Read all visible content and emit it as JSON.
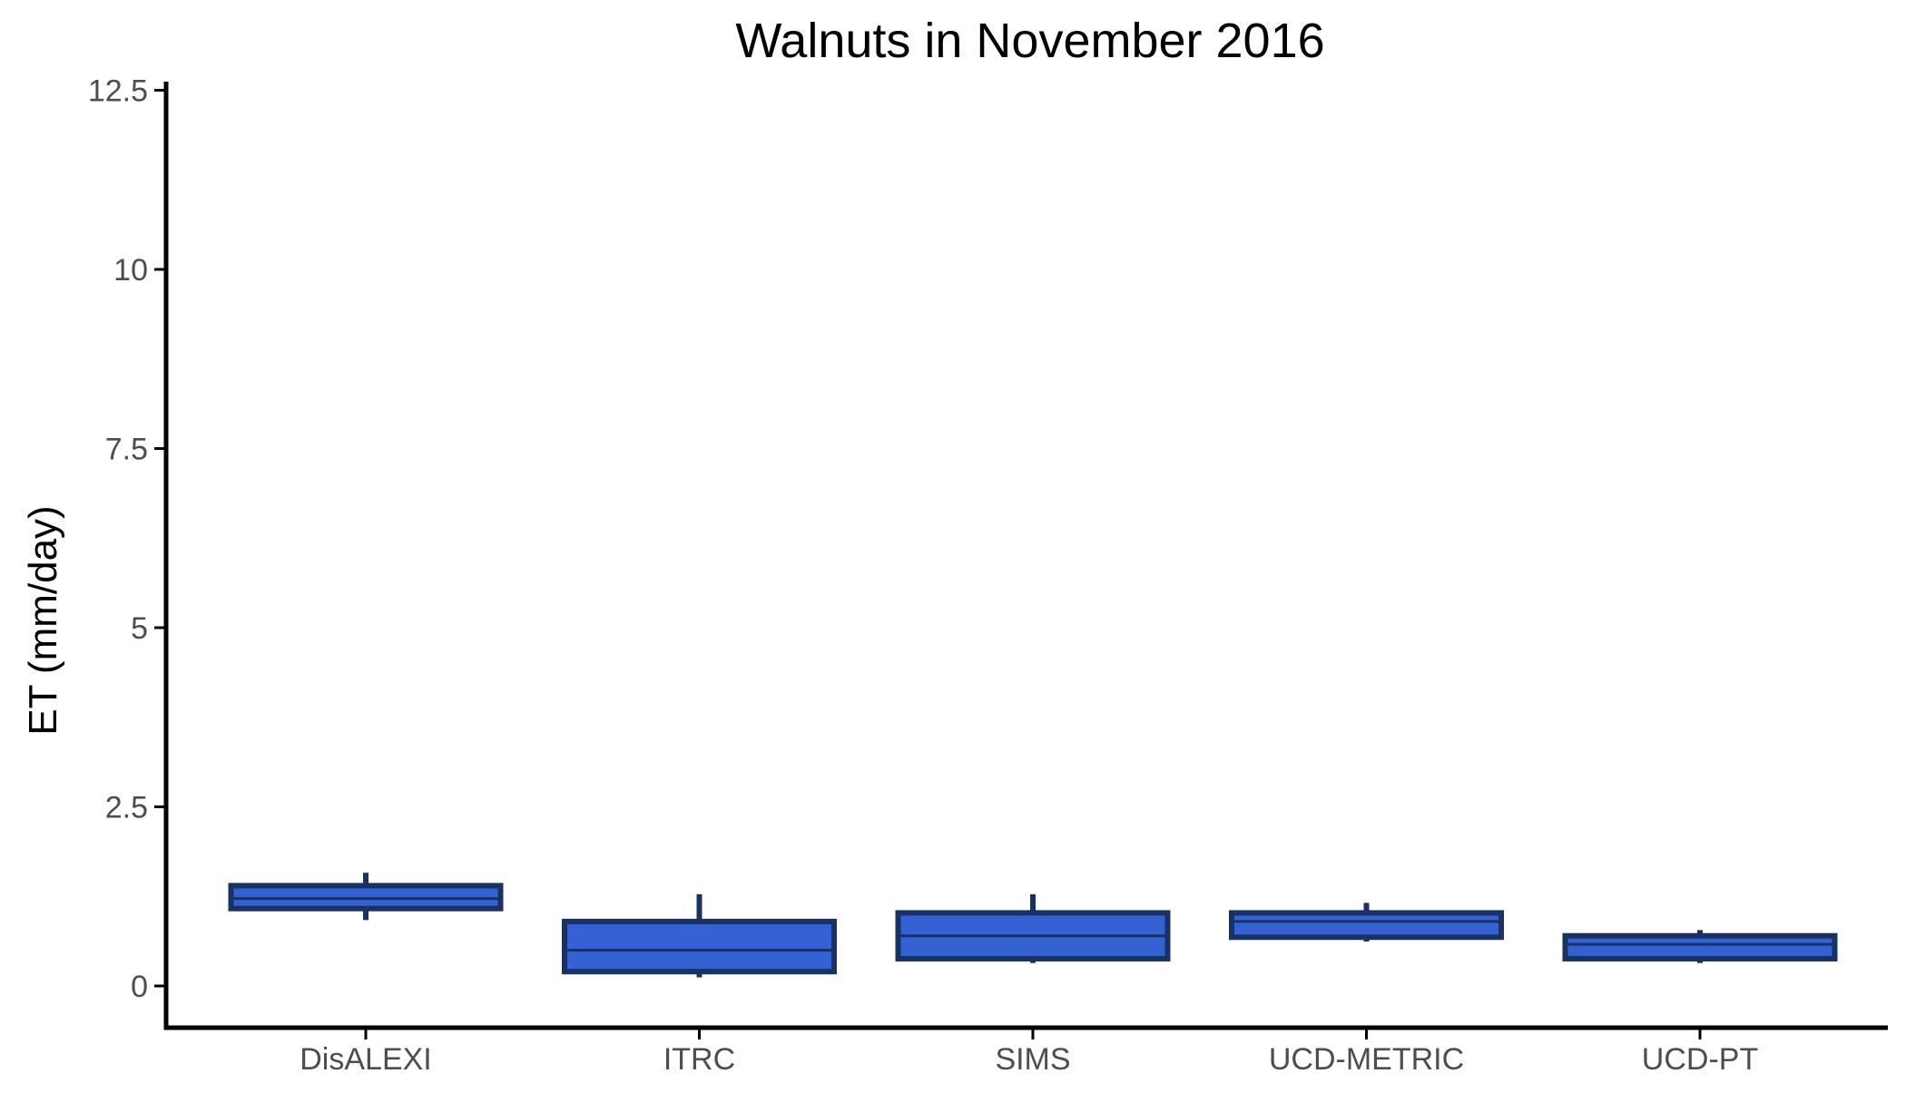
{
  "chart_data": {
    "type": "boxplot",
    "title": "Walnuts in November 2016",
    "xlabel": "",
    "ylabel": "ET (mm/day)",
    "ylim": [
      -0.58,
      12.7
    ],
    "yticks": [
      0,
      2.5,
      5,
      7.5,
      10,
      12.5
    ],
    "ytick_labels": [
      "0",
      "2.5",
      "5",
      "7.5",
      "10",
      "12.5"
    ],
    "grid": false,
    "legend": "none",
    "categories": [
      "DisALEXI",
      "ITRC",
      "SIMS",
      "UCD-METRIC",
      "UCD-PT"
    ],
    "boxes": [
      {
        "category": "DisALEXI",
        "whisker_low": 0.92,
        "q1": 1.08,
        "median": 1.22,
        "q3": 1.4,
        "whisker_high": 1.58
      },
      {
        "category": "ITRC",
        "whisker_low": 0.12,
        "q1": 0.2,
        "median": 0.5,
        "q3": 0.9,
        "whisker_high": 1.28
      },
      {
        "category": "SIMS",
        "whisker_low": 0.32,
        "q1": 0.38,
        "median": 0.7,
        "q3": 1.02,
        "whisker_high": 1.28
      },
      {
        "category": "UCD-METRIC",
        "whisker_low": 0.62,
        "q1": 0.68,
        "median": 0.9,
        "q3": 1.02,
        "whisker_high": 1.16
      },
      {
        "category": "UCD-PT",
        "whisker_low": 0.32,
        "q1": 0.38,
        "median": 0.58,
        "q3": 0.7,
        "whisker_high": 0.78
      }
    ],
    "colors": {
      "fill": "#3462d4",
      "stroke": "#1a3163",
      "axis": "#000000",
      "tick_text": "#4d4d4d"
    }
  }
}
